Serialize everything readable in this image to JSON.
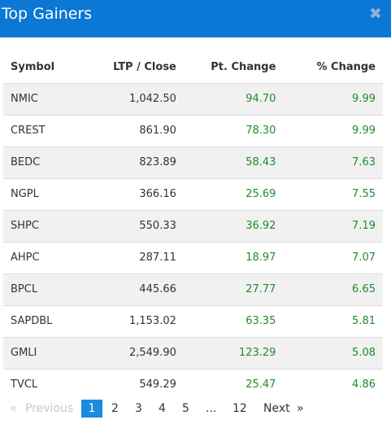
{
  "modal": {
    "title": "Top Gainers",
    "close_glyph": "✖"
  },
  "table": {
    "columns": [
      "Symbol",
      "LTP / Close",
      "Pt. Change",
      "% Change"
    ],
    "rows": [
      {
        "symbol": "NMIC",
        "ltp": "1,042.50",
        "pt_change": "94.70",
        "pct_change": "9.99"
      },
      {
        "symbol": "CREST",
        "ltp": "861.90",
        "pt_change": "78.30",
        "pct_change": "9.99"
      },
      {
        "symbol": "BEDC",
        "ltp": "823.89",
        "pt_change": "58.43",
        "pct_change": "7.63"
      },
      {
        "symbol": "NGPL",
        "ltp": "366.16",
        "pt_change": "25.69",
        "pct_change": "7.55"
      },
      {
        "symbol": "SHPC",
        "ltp": "550.33",
        "pt_change": "36.92",
        "pct_change": "7.19"
      },
      {
        "symbol": "AHPC",
        "ltp": "287.11",
        "pt_change": "18.97",
        "pct_change": "7.07"
      },
      {
        "symbol": "BPCL",
        "ltp": "445.66",
        "pt_change": "27.77",
        "pct_change": "6.65"
      },
      {
        "symbol": "SAPDBL",
        "ltp": "1,153.02",
        "pt_change": "63.35",
        "pct_change": "5.81"
      },
      {
        "symbol": "GMLI",
        "ltp": "2,549.90",
        "pt_change": "123.29",
        "pct_change": "5.08"
      },
      {
        "symbol": "TVCL",
        "ltp": "549.29",
        "pt_change": "25.47",
        "pct_change": "4.86"
      }
    ]
  },
  "pagination": {
    "first_glyph": "«",
    "previous_label": "Previous",
    "pages": [
      "1",
      "2",
      "3",
      "4",
      "5"
    ],
    "ellipsis": "...",
    "last_page": "12",
    "next_label": "Next",
    "last_glyph": "»",
    "current_page": "1"
  },
  "colors": {
    "header_bg": "#0a78d4",
    "positive": "#1e8b2a",
    "active_page": "#1b8be0",
    "row_stripe": "#f1f1f1"
  }
}
